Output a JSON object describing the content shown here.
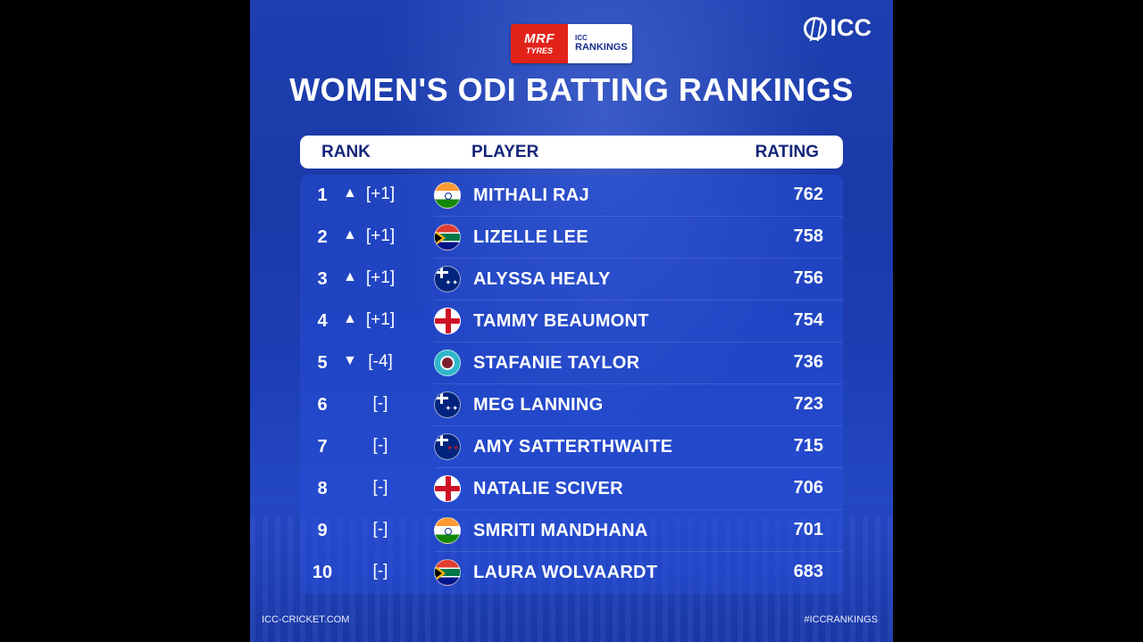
{
  "sponsor": {
    "mrf_line1": "MRF",
    "mrf_line2": "TYRES",
    "badge_line1": "ICC",
    "badge_line2": "RANKINGS"
  },
  "icc_logo_text": "ICC",
  "title": "WOMEN'S ODI BATTING RANKINGS",
  "table": {
    "headers": {
      "rank": "RANK",
      "player": "PLAYER",
      "rating": "RATING"
    },
    "rows": [
      {
        "rank": "1",
        "arrow": "▲",
        "move": "[+1]",
        "flag": "india-flag-icon",
        "name": "MITHALI RAJ",
        "rating": "762"
      },
      {
        "rank": "2",
        "arrow": "▲",
        "move": "[+1]",
        "flag": "south-africa-flag-icon",
        "name": "LIZELLE LEE",
        "rating": "758"
      },
      {
        "rank": "3",
        "arrow": "▲",
        "move": "[+1]",
        "flag": "australia-flag-icon",
        "name": "ALYSSA HEALY",
        "rating": "756"
      },
      {
        "rank": "4",
        "arrow": "▲",
        "move": "[+1]",
        "flag": "england-flag-icon",
        "name": "TAMMY BEAUMONT",
        "rating": "754"
      },
      {
        "rank": "5",
        "arrow": "▼",
        "move": "[-4]",
        "flag": "west-indies-flag-icon",
        "name": "STAFANIE TAYLOR",
        "rating": "736"
      },
      {
        "rank": "6",
        "arrow": "",
        "move": "[-]",
        "flag": "australia-flag-icon",
        "name": "MEG LANNING",
        "rating": "723"
      },
      {
        "rank": "7",
        "arrow": "",
        "move": "[-]",
        "flag": "new-zealand-flag-icon",
        "name": "AMY SATTERTHWAITE",
        "rating": "715"
      },
      {
        "rank": "8",
        "arrow": "",
        "move": "[-]",
        "flag": "england-flag-icon",
        "name": "NATALIE SCIVER",
        "rating": "706"
      },
      {
        "rank": "9",
        "arrow": "",
        "move": "[-]",
        "flag": "india-flag-icon",
        "name": "SMRITI MANDHANA",
        "rating": "701"
      },
      {
        "rank": "10",
        "arrow": "",
        "move": "[-]",
        "flag": "south-africa-flag-icon",
        "name": "LAURA WOLVAARDT",
        "rating": "683"
      }
    ]
  },
  "footer": {
    "left": "ICC-CRICKET.COM",
    "right": "#ICCRANKINGS"
  }
}
